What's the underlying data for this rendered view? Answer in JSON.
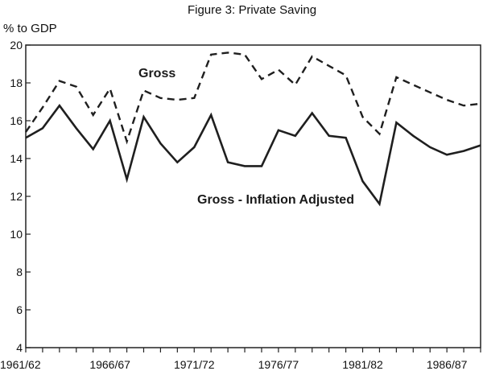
{
  "chart_data": {
    "type": "line",
    "title": "Figure 3: Private Saving",
    "ylabel": "% to GDP",
    "xlabel": "",
    "ylim": [
      4,
      20
    ],
    "yticks": [
      4,
      6,
      8,
      10,
      12,
      14,
      16,
      18,
      20
    ],
    "x": [
      "1961/62",
      "1962/63",
      "1963/64",
      "1964/65",
      "1965/66",
      "1966/67",
      "1967/68",
      "1968/69",
      "1969/70",
      "1970/71",
      "1971/72",
      "1972/73",
      "1973/74",
      "1974/75",
      "1975/76",
      "1976/77",
      "1977/78",
      "1978/79",
      "1979/80",
      "1980/81",
      "1981/82",
      "1982/83",
      "1983/84",
      "1984/85",
      "1985/86",
      "1986/87",
      "1987/88",
      "1988/89"
    ],
    "xtick_labels": [
      "1961/62",
      "1966/67",
      "1971/72",
      "1976/77",
      "1981/82",
      "1986/87"
    ],
    "series": [
      {
        "name": "Gross",
        "style": "dashed",
        "values": [
          15.4,
          16.7,
          18.1,
          17.8,
          16.3,
          17.7,
          14.9,
          17.6,
          17.2,
          17.1,
          17.2,
          19.5,
          19.6,
          19.5,
          18.2,
          18.7,
          17.9,
          19.4,
          18.9,
          18.4,
          16.2,
          15.3,
          18.3,
          17.9,
          17.5,
          17.1,
          16.8,
          16.9
        ]
      },
      {
        "name": "Gross - Inflation Adjusted",
        "style": "solid",
        "values": [
          15.1,
          15.6,
          16.8,
          15.6,
          14.5,
          16.0,
          12.9,
          16.2,
          14.8,
          13.8,
          14.6,
          16.3,
          13.8,
          13.6,
          13.6,
          15.5,
          15.2,
          16.4,
          15.2,
          15.1,
          12.8,
          11.6,
          15.9,
          15.2,
          14.6,
          14.2,
          14.4,
          14.7
        ]
      }
    ],
    "annotations": [
      {
        "text": "Gross",
        "series": "Gross"
      },
      {
        "text": "Gross - Inflation Adjusted",
        "series": "Gross - Inflation Adjusted"
      }
    ],
    "colors": {
      "line": "#1f1f1f",
      "axis": "#222222"
    }
  }
}
